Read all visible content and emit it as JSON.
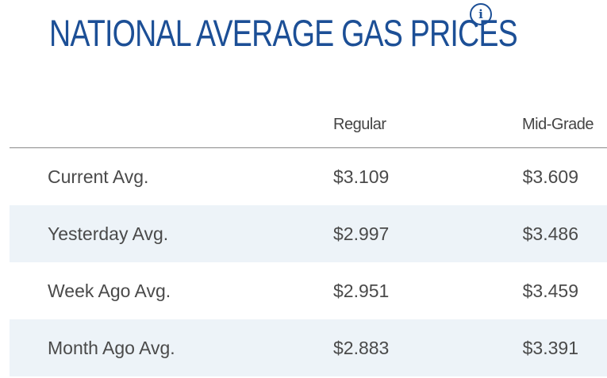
{
  "header": {
    "title": "NATIONAL AVERAGE GAS PRICES",
    "info_icon": "info-icon",
    "info_glyph": "i"
  },
  "colors": {
    "title": "#1c4f96",
    "row_alt_bg": "#edf3f8",
    "text": "#4a4a4a"
  },
  "table": {
    "columns": [
      "",
      "Regular",
      "Mid-Grade"
    ],
    "rows": [
      {
        "label": "Current Avg.",
        "regular": "$3.109",
        "midgrade": "$3.609"
      },
      {
        "label": "Yesterday Avg.",
        "regular": "$2.997",
        "midgrade": "$3.486"
      },
      {
        "label": "Week Ago Avg.",
        "regular": "$2.951",
        "midgrade": "$3.459"
      },
      {
        "label": "Month Ago Avg.",
        "regular": "$2.883",
        "midgrade": "$3.391"
      }
    ]
  }
}
